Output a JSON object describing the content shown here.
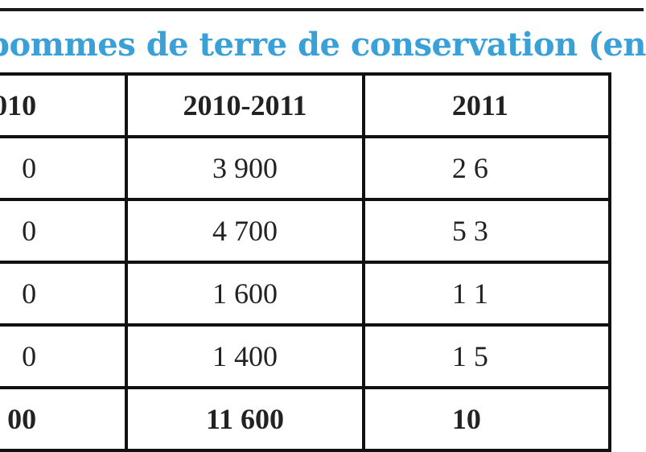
{
  "title": "pommes de terre de conservation (en",
  "columns": [
    "010",
    "2010-2011",
    "2011"
  ],
  "rows": [
    [
      "0",
      "3 900",
      "2 6"
    ],
    [
      "0",
      "4 700",
      "5 3"
    ],
    [
      "0",
      "1 600",
      "1 1"
    ],
    [
      "0",
      "1 400",
      "1 5"
    ]
  ],
  "total": [
    "00",
    "11 600",
    "10"
  ],
  "colors": {
    "title": "#3aa0d8",
    "border": "#111111",
    "text": "#222222"
  }
}
